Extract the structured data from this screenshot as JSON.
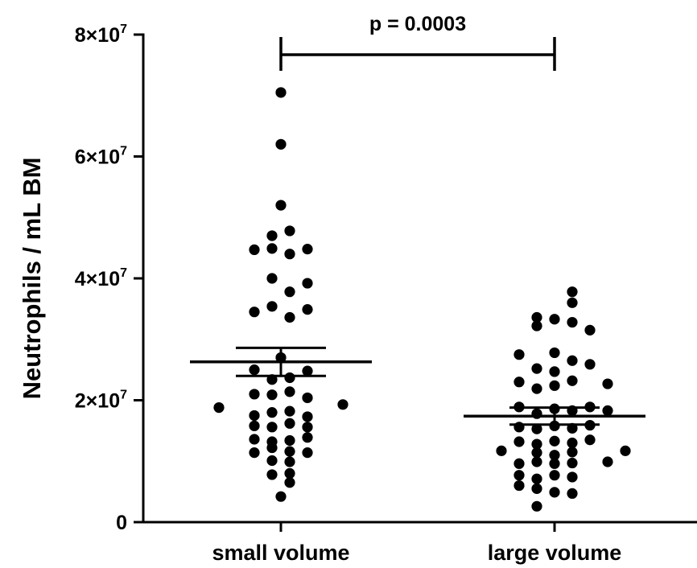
{
  "chart_data": {
    "type": "scatter",
    "plot_style": "dot plot with mean ± SEM bars",
    "ylabel": "Neutrophils / mL BM",
    "xlabel": "",
    "title": "",
    "categories": [
      "small volume",
      "large volume"
    ],
    "ylim": [
      0,
      80000000
    ],
    "yticks": [
      {
        "value": 0,
        "label": "0"
      },
      {
        "value": 20000000,
        "label": "2×10",
        "exp": "7"
      },
      {
        "value": 40000000,
        "label": "4×10",
        "exp": "7"
      },
      {
        "value": 60000000,
        "label": "6×10",
        "exp": "7"
      },
      {
        "value": 80000000,
        "label": "8×10",
        "exp": "7"
      }
    ],
    "grid": false,
    "legend": "none",
    "significance": {
      "label": "p = 0.0003",
      "between": [
        "small volume",
        "large volume"
      ]
    },
    "marker_color": "#000000",
    "series": [
      {
        "category": "small volume",
        "mean": 26300000,
        "sem_low": 24000000,
        "sem_high": 28600000,
        "points": [
          {
            "offset": 0,
            "y": 70500000
          },
          {
            "offset": 0,
            "y": 62000000
          },
          {
            "offset": 0,
            "y": 52000000
          },
          {
            "offset": -0.55,
            "y": 47000000
          },
          {
            "offset": 0.55,
            "y": 47800000
          },
          {
            "offset": -1.65,
            "y": 44700000
          },
          {
            "offset": -0.55,
            "y": 44900000
          },
          {
            "offset": 0.55,
            "y": 44000000
          },
          {
            "offset": 1.65,
            "y": 44800000
          },
          {
            "offset": -0.55,
            "y": 40000000
          },
          {
            "offset": 0.55,
            "y": 37800000
          },
          {
            "offset": 1.65,
            "y": 39200000
          },
          {
            "offset": -1.65,
            "y": 34500000
          },
          {
            "offset": -0.55,
            "y": 35400000
          },
          {
            "offset": 0.55,
            "y": 33600000
          },
          {
            "offset": 1.65,
            "y": 34900000
          },
          {
            "offset": 0,
            "y": 27000000
          },
          {
            "offset": -1.65,
            "y": 25000000
          },
          {
            "offset": -0.55,
            "y": 23400000
          },
          {
            "offset": 0.55,
            "y": 23700000
          },
          {
            "offset": 1.65,
            "y": 24800000
          },
          {
            "offset": -1.65,
            "y": 21000000
          },
          {
            "offset": -0.55,
            "y": 20900000
          },
          {
            "offset": 0.55,
            "y": 21400000
          },
          {
            "offset": 1.65,
            "y": 20400000
          },
          {
            "offset": -3.85,
            "y": 18800000
          },
          {
            "offset": -1.65,
            "y": 17500000
          },
          {
            "offset": -0.55,
            "y": 18000000
          },
          {
            "offset": 0.55,
            "y": 18200000
          },
          {
            "offset": 1.65,
            "y": 17300000
          },
          {
            "offset": 3.85,
            "y": 19300000
          },
          {
            "offset": -1.65,
            "y": 15800000
          },
          {
            "offset": -0.55,
            "y": 15600000
          },
          {
            "offset": 0.55,
            "y": 16200000
          },
          {
            "offset": 1.65,
            "y": 15600000
          },
          {
            "offset": -1.65,
            "y": 13600000
          },
          {
            "offset": -0.55,
            "y": 13200000
          },
          {
            "offset": 0.55,
            "y": 13400000
          },
          {
            "offset": 1.65,
            "y": 13900000
          },
          {
            "offset": -1.65,
            "y": 11400000
          },
          {
            "offset": -0.55,
            "y": 12200000
          },
          {
            "offset": 0.55,
            "y": 11600000
          },
          {
            "offset": 1.65,
            "y": 11400000
          },
          {
            "offset": -0.55,
            "y": 10100000
          },
          {
            "offset": 0.55,
            "y": 9900000
          },
          {
            "offset": -0.55,
            "y": 7800000
          },
          {
            "offset": 0.55,
            "y": 8000000
          },
          {
            "offset": 0.55,
            "y": 6500000
          },
          {
            "offset": 0,
            "y": 4200000
          }
        ]
      },
      {
        "category": "large volume",
        "mean": 17400000,
        "sem_low": 16000000,
        "sem_high": 18800000,
        "points": [
          {
            "offset": 1.1,
            "y": 37800000
          },
          {
            "offset": 1.1,
            "y": 36000000
          },
          {
            "offset": -1.1,
            "y": 33600000
          },
          {
            "offset": 0,
            "y": 33300000
          },
          {
            "offset": -1.1,
            "y": 32200000
          },
          {
            "offset": 1.1,
            "y": 32800000
          },
          {
            "offset": 2.2,
            "y": 31500000
          },
          {
            "offset": -2.2,
            "y": 27500000
          },
          {
            "offset": 0,
            "y": 27800000
          },
          {
            "offset": 1.1,
            "y": 26500000
          },
          {
            "offset": -1.1,
            "y": 25200000
          },
          {
            "offset": 0,
            "y": 24700000
          },
          {
            "offset": 2.2,
            "y": 25900000
          },
          {
            "offset": -2.2,
            "y": 23000000
          },
          {
            "offset": -1.1,
            "y": 21900000
          },
          {
            "offset": 0,
            "y": 22400000
          },
          {
            "offset": 1.1,
            "y": 23200000
          },
          {
            "offset": 3.3,
            "y": 22700000
          },
          {
            "offset": -2.2,
            "y": 18900000
          },
          {
            "offset": -1.1,
            "y": 17800000
          },
          {
            "offset": 0,
            "y": 18600000
          },
          {
            "offset": 1.1,
            "y": 18300000
          },
          {
            "offset": 2.2,
            "y": 18900000
          },
          {
            "offset": 3.3,
            "y": 18300000
          },
          {
            "offset": -2.2,
            "y": 15600000
          },
          {
            "offset": -1.1,
            "y": 15300000
          },
          {
            "offset": 0,
            "y": 15800000
          },
          {
            "offset": 1.1,
            "y": 15400000
          },
          {
            "offset": 2.2,
            "y": 15900000
          },
          {
            "offset": -2.2,
            "y": 13200000
          },
          {
            "offset": -1.1,
            "y": 12800000
          },
          {
            "offset": 0,
            "y": 13300000
          },
          {
            "offset": 1.1,
            "y": 13000000
          },
          {
            "offset": 2.2,
            "y": 13500000
          },
          {
            "offset": -3.3,
            "y": 11700000
          },
          {
            "offset": -1.1,
            "y": 11400000
          },
          {
            "offset": 0,
            "y": 11000000
          },
          {
            "offset": 1.1,
            "y": 11500000
          },
          {
            "offset": 4.4,
            "y": 11700000
          },
          {
            "offset": -2.2,
            "y": 9600000
          },
          {
            "offset": -1.1,
            "y": 9900000
          },
          {
            "offset": 0,
            "y": 9600000
          },
          {
            "offset": 1.1,
            "y": 9700000
          },
          {
            "offset": 3.3,
            "y": 9900000
          },
          {
            "offset": -2.2,
            "y": 7700000
          },
          {
            "offset": -1.1,
            "y": 7100000
          },
          {
            "offset": 0,
            "y": 7700000
          },
          {
            "offset": 1.1,
            "y": 7400000
          },
          {
            "offset": -2.2,
            "y": 6000000
          },
          {
            "offset": -1.1,
            "y": 5500000
          },
          {
            "offset": 0,
            "y": 4900000
          },
          {
            "offset": 1.1,
            "y": 4700000
          },
          {
            "offset": -1.1,
            "y": 2600000
          }
        ]
      }
    ]
  }
}
